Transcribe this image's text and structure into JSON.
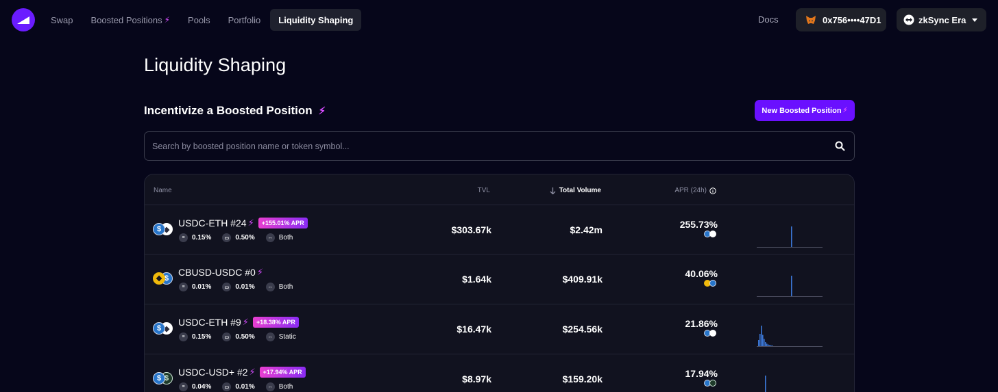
{
  "nav": {
    "items": [
      {
        "label": "Swap",
        "active": false
      },
      {
        "label": "Boosted Positions",
        "active": false,
        "bolt": true
      },
      {
        "label": "Pools",
        "active": false
      },
      {
        "label": "Portfolio",
        "active": false
      },
      {
        "label": "Liquidity Shaping",
        "active": true
      }
    ],
    "docs": "Docs",
    "wallet": {
      "address": "0x756••••47D1",
      "icon": "metamask-fox-icon"
    },
    "network": {
      "label": "zkSync Era",
      "icon": "zksync-icon"
    }
  },
  "page": {
    "title": "Liquidity Shaping",
    "section_title": "Incentivize a Boosted Position",
    "new_button": "New Boosted Position",
    "search_placeholder": "Search by boosted position name or token symbol..."
  },
  "table": {
    "headers": {
      "name": "Name",
      "tvl": "TVL",
      "volume": "Total Volume",
      "apr": "APR (24h)"
    },
    "rows": [
      {
        "name": "USDC-ETH #24",
        "apr_badge": "+155.01% APR",
        "fee": "0.15%",
        "range": "0.50%",
        "mode": "Both",
        "tvl": "$303.67k",
        "volume": "$2.42m",
        "apr": "255.73%",
        "tokens": [
          "usdc",
          "eth"
        ],
        "rewards": [
          "usdc",
          "eth"
        ],
        "spark": [
          0,
          0,
          0,
          0,
          0,
          0,
          0,
          0,
          0,
          0,
          0,
          0,
          0,
          0,
          0,
          0,
          0,
          0,
          0,
          0,
          0,
          0,
          0,
          0,
          0,
          1,
          0,
          0,
          0,
          0,
          0,
          0,
          0,
          0,
          0,
          0,
          0,
          0,
          0,
          0,
          0,
          0,
          0,
          0,
          0,
          0,
          0,
          0
        ]
      },
      {
        "name": "CBUSD-USDC #0",
        "apr_badge": "",
        "fee": "0.01%",
        "range": "0.01%",
        "mode": "Both",
        "tvl": "$1.64k",
        "volume": "$409.91k",
        "apr": "40.06%",
        "tokens": [
          "cbusd",
          "usdc"
        ],
        "rewards": [
          "cbusd",
          "usdc"
        ],
        "spark": [
          0,
          0,
          0,
          0,
          0,
          0,
          0,
          0,
          0,
          0,
          0,
          0,
          0,
          0,
          0,
          0,
          0,
          0,
          0,
          0,
          0,
          0,
          0,
          0,
          0,
          1,
          0,
          0,
          0,
          0,
          0,
          0,
          0,
          0,
          0,
          0,
          0,
          0,
          0,
          0,
          0,
          0,
          0,
          0,
          0,
          0,
          0,
          0
        ]
      },
      {
        "name": "USDC-ETH #9",
        "apr_badge": "+18.38% APR",
        "fee": "0.15%",
        "range": "0.50%",
        "mode": "Static",
        "tvl": "$16.47k",
        "volume": "$254.56k",
        "apr": "21.86%",
        "tokens": [
          "usdc",
          "eth"
        ],
        "rewards": [
          "usdc",
          "eth"
        ],
        "spark": [
          0,
          0.3,
          0.6,
          1,
          0.55,
          0.35,
          0.2,
          0.12,
          0.08,
          0.05,
          0.04,
          0.03,
          0,
          0,
          0,
          0,
          0,
          0,
          0,
          0,
          0,
          0,
          0,
          0,
          0,
          0,
          0,
          0,
          0,
          0,
          0,
          0,
          0,
          0,
          0,
          0,
          0,
          0,
          0,
          0,
          0,
          0,
          0,
          0,
          0,
          0,
          0,
          0
        ]
      },
      {
        "name": "USDC-USD+ #2",
        "apr_badge": "+17.94% APR",
        "fee": "0.04%",
        "range": "0.01%",
        "mode": "Both",
        "tvl": "$8.97k",
        "volume": "$159.20k",
        "apr": "17.94%",
        "tokens": [
          "usdc",
          "usdplus"
        ],
        "rewards": [
          "usdc",
          "usdplus"
        ],
        "spark": [
          0,
          0,
          0,
          0,
          0,
          0,
          1,
          0,
          0,
          0,
          0,
          0,
          0,
          0,
          0,
          0,
          0,
          0,
          0,
          0,
          0,
          0,
          0,
          0,
          0,
          0,
          0,
          0,
          0,
          0,
          0,
          0,
          0,
          0,
          0,
          0,
          0,
          0,
          0,
          0,
          0,
          0,
          0,
          0,
          0,
          0,
          0,
          0
        ]
      }
    ]
  },
  "colors": {
    "accent": "#6a10ff",
    "badge_from": "#e83fd0",
    "badge_to": "#8a2cf3",
    "bolt": "#d64cff",
    "bar": "#3b77d6",
    "usdc": "#2775ca"
  }
}
